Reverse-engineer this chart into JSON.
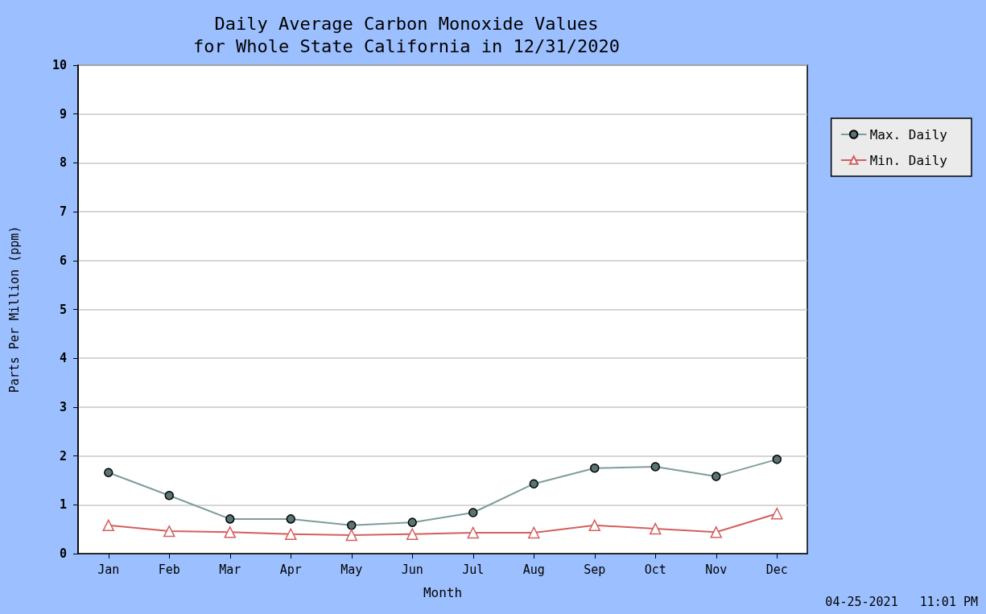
{
  "chart_data": {
    "type": "line",
    "title": "Daily Average Carbon Monoxide Values\nfor Whole State California in 12/31/2020",
    "xlabel": "Month",
    "ylabel": "Parts Per Million (ppm)",
    "categories": [
      "Jan",
      "Feb",
      "Mar",
      "Apr",
      "May",
      "Jun",
      "Jul",
      "Aug",
      "Sep",
      "Oct",
      "Nov",
      "Dec"
    ],
    "series": [
      {
        "name": "Max. Daily",
        "color": "#7f9c9c",
        "marker": "circle",
        "values": [
          1.66,
          1.19,
          0.71,
          0.71,
          0.58,
          0.64,
          0.84,
          1.43,
          1.75,
          1.78,
          1.58,
          1.93
        ]
      },
      {
        "name": "Min. Daily",
        "color": "#d45f5f",
        "marker": "triangle",
        "values": [
          0.58,
          0.46,
          0.44,
          0.4,
          0.38,
          0.4,
          0.43,
          0.43,
          0.58,
          0.51,
          0.44,
          0.82
        ]
      }
    ],
    "ylim": [
      0,
      10
    ],
    "yticks": [
      0,
      1,
      2,
      3,
      4,
      5,
      6,
      7,
      8,
      9,
      10
    ],
    "grid": "y",
    "legend": "right",
    "annotations": [
      "04-25-2021   11:01 PM"
    ]
  }
}
